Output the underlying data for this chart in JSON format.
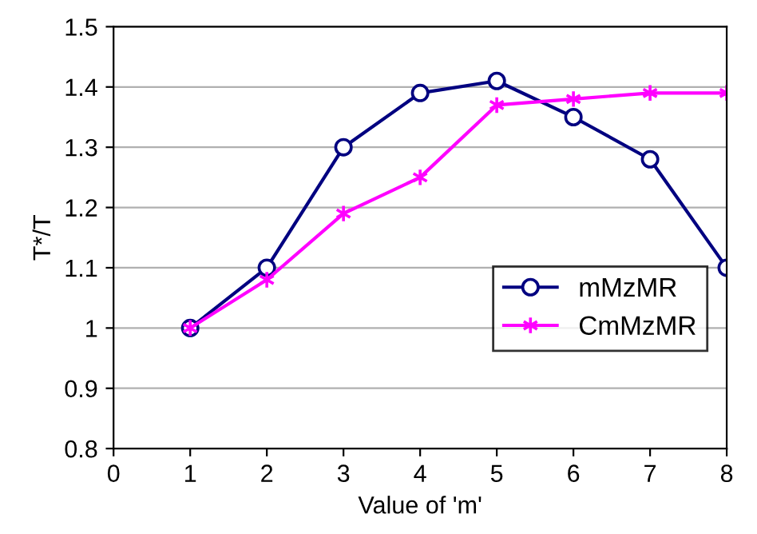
{
  "chart_data": {
    "type": "line",
    "xlabel": "Value of 'm'",
    "ylabel": "T*/T",
    "x": [
      1,
      2,
      3,
      4,
      5,
      6,
      7,
      8
    ],
    "series": [
      {
        "name": "mMzMR",
        "color": "#000080",
        "marker": "circle",
        "values": [
          1.0,
          1.1,
          1.3,
          1.39,
          1.41,
          1.35,
          1.28,
          1.1
        ]
      },
      {
        "name": "CmMzMR",
        "color": "#ff00ff",
        "marker": "cross",
        "values": [
          1.0,
          1.08,
          1.19,
          1.25,
          1.37,
          1.38,
          1.39,
          1.39
        ]
      }
    ],
    "xlim": [
      0,
      8
    ],
    "xticks": [
      0,
      1,
      2,
      3,
      4,
      5,
      6,
      7,
      8
    ],
    "ylim": [
      0.8,
      1.5
    ],
    "yticks": [
      {
        "value": 0.8,
        "label": "0.8"
      },
      {
        "value": 0.9,
        "label": "0.9"
      },
      {
        "value": 1.0,
        "label": "1"
      },
      {
        "value": 1.1,
        "label": "1.1"
      },
      {
        "value": 1.2,
        "label": "1.2"
      },
      {
        "value": 1.3,
        "label": "1.3"
      },
      {
        "value": 1.4,
        "label": "1.4"
      },
      {
        "value": 1.5,
        "label": "1.5"
      }
    ],
    "grid": "y",
    "legend": "bottom right",
    "line_style": "solid"
  }
}
